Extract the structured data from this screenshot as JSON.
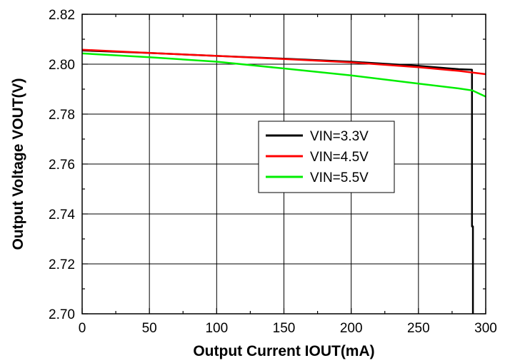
{
  "chart_data": {
    "type": "line",
    "title": "",
    "xlabel": "Output Current IOUT(mA)",
    "ylabel": "Output Voltage VOUT(V)",
    "xlim": [
      0,
      300
    ],
    "ylim": [
      2.7,
      2.82
    ],
    "x_ticks": [
      0,
      50,
      100,
      150,
      200,
      250,
      300
    ],
    "x_tick_labels": [
      "0",
      "50",
      "100",
      "150",
      "200",
      "250",
      "300"
    ],
    "y_ticks": [
      2.7,
      2.72,
      2.74,
      2.76,
      2.78,
      2.8,
      2.82
    ],
    "y_tick_labels": [
      "2.70",
      "2.72",
      "2.74",
      "2.76",
      "2.78",
      "2.80",
      "2.82"
    ],
    "grid": true,
    "legend_position": "center-right",
    "series": [
      {
        "name": "VIN=3.3V",
        "color": "#000000",
        "x": [
          0,
          50,
          100,
          150,
          200,
          250,
          280,
          289.8,
          289.8,
          290.5,
          290.5
        ],
        "y": [
          2.8055,
          2.8045,
          2.8033,
          2.8022,
          2.801,
          2.7993,
          2.798,
          2.7978,
          2.735,
          2.735,
          2.7
        ]
      },
      {
        "name": "VIN=4.5V",
        "color": "#ff0000",
        "x": [
          0,
          50,
          100,
          150,
          200,
          250,
          280,
          300
        ],
        "y": [
          2.8058,
          2.8045,
          2.8033,
          2.8021,
          2.8007,
          2.7988,
          2.7973,
          2.796
        ]
      },
      {
        "name": "VIN=5.5V",
        "color": "#00ee00",
        "x": [
          0,
          50,
          100,
          150,
          200,
          250,
          280,
          290,
          300
        ],
        "y": [
          2.8043,
          2.8028,
          2.801,
          2.7983,
          2.7955,
          2.7922,
          2.7903,
          2.7895,
          2.787
        ]
      }
    ]
  }
}
